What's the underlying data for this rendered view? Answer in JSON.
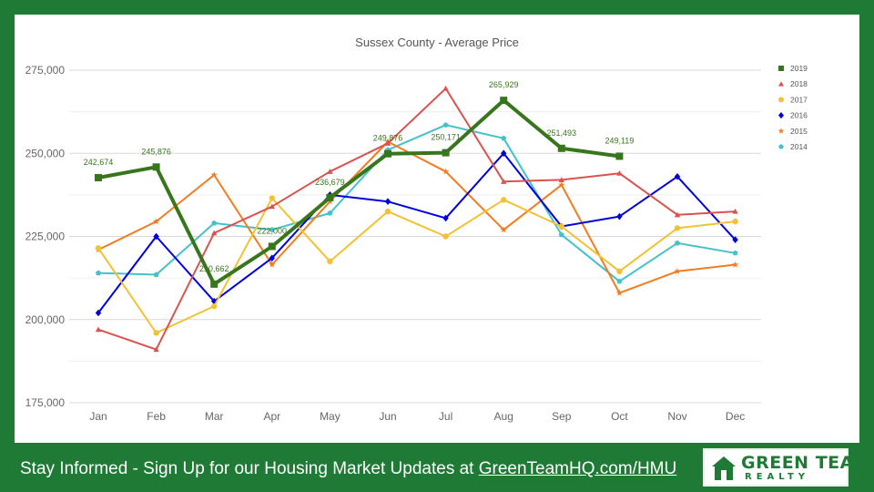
{
  "chart_data": {
    "type": "line",
    "title": "Sussex County - Average Price",
    "categories": [
      "Jan",
      "Feb",
      "Mar",
      "Apr",
      "May",
      "Jun",
      "Jul",
      "Aug",
      "Sep",
      "Oct",
      "Nov",
      "Dec"
    ],
    "ylim": [
      175000,
      275000
    ],
    "yticks": [
      175000,
      200000,
      225000,
      250000,
      275000
    ],
    "ytick_labels": [
      "175,000",
      "200,000",
      "225,000",
      "250,000",
      "275,000"
    ],
    "grid": true,
    "legend_position": "right",
    "series": [
      {
        "name": "2019",
        "color": "#38761d",
        "marker": "square",
        "width": 4,
        "values": [
          242674,
          245876,
          210662,
          222000,
          236679,
          249876,
          250171,
          265929,
          251493,
          249119,
          null,
          null
        ],
        "labels": [
          "242,674",
          "245,876",
          "210,662",
          "222,000",
          "236,679",
          "249,876",
          "250,171",
          "265,929",
          "251,493",
          "249,119",
          null,
          null
        ]
      },
      {
        "name": "2018",
        "color": "#d9534f",
        "marker": "triangle",
        "width": 2,
        "values": [
          197000,
          191000,
          226000,
          234000,
          244500,
          253000,
          269500,
          241500,
          242000,
          244000,
          231500,
          232500
        ]
      },
      {
        "name": "2017",
        "color": "#f1c232",
        "marker": "circle",
        "width": 2,
        "values": [
          221500,
          196000,
          204000,
          236500,
          217500,
          232500,
          225000,
          236000,
          228000,
          214500,
          227500,
          229500
        ]
      },
      {
        "name": "2016",
        "color": "#0000dd",
        "marker": "diamond",
        "width": 2,
        "values": [
          202000,
          225000,
          205500,
          218500,
          237500,
          235500,
          230500,
          250000,
          228000,
          231000,
          243000,
          224000
        ]
      },
      {
        "name": "2015",
        "color": "#f47c20",
        "marker": "star",
        "width": 2,
        "values": [
          221000,
          229500,
          243500,
          216500,
          235500,
          253500,
          244500,
          227000,
          240500,
          208000,
          214500,
          216500
        ]
      },
      {
        "name": "2014",
        "color": "#45c1c9",
        "marker": "pentagon",
        "width": 2,
        "values": [
          214000,
          213500,
          229000,
          227000,
          232000,
          251000,
          258500,
          254500,
          225500,
          211500,
          223000,
          220000
        ]
      }
    ]
  },
  "footer": {
    "text": "Stay Informed - Sign Up for our Housing Market Updates at ",
    "link": "GreenTeamHQ.com/HMU"
  },
  "logo": {
    "line1": "GREEN TEAM",
    "line2": "REALTY"
  }
}
